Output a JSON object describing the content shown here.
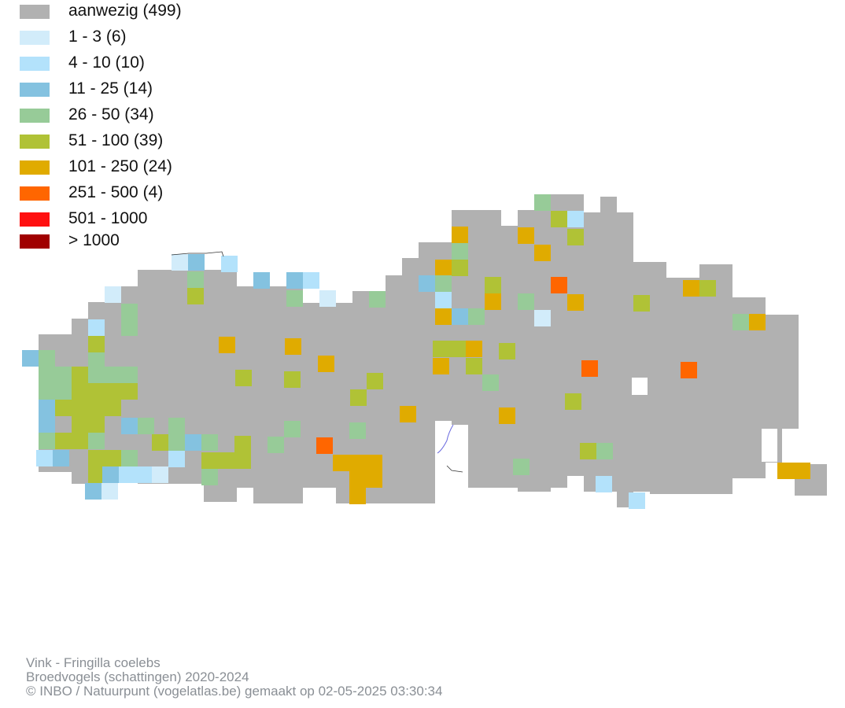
{
  "legend": {
    "items": [
      {
        "label": "aanwezig (499)",
        "color": "#b1b1b1"
      },
      {
        "label": "1 - 3 (6)",
        "color": "#d2ecfa"
      },
      {
        "label": "4 - 10 (10)",
        "color": "#b3e2fb"
      },
      {
        "label": "11 - 25 (14)",
        "color": "#84c2e0"
      },
      {
        "label": "26 - 50 (34)",
        "color": "#97cb98"
      },
      {
        "label": "51 - 100 (39)",
        "color": "#b0c236"
      },
      {
        "label": "101 - 250 (24)",
        "color": "#e0ab00"
      },
      {
        "label": "251 - 500 (4)",
        "color": "#ff6600"
      },
      {
        "label": "501 - 1000",
        "color": "#ff1010"
      },
      {
        "label": "> 1000",
        "color": "#a00000"
      }
    ]
  },
  "footer": {
    "line1": "Vink - Fringilla coelebs",
    "line2": "Broedvogels (schattingen) 2020-2024",
    "line3": "© INBO / Natuurpunt (vogelatlas.be) gemaakt op 02-05-2025 03:30:34"
  }
}
